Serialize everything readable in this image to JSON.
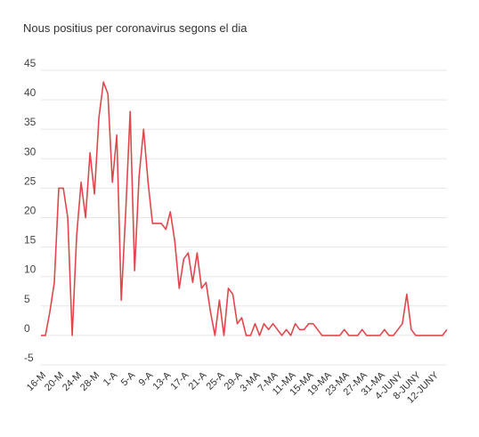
{
  "chart_data": {
    "type": "line",
    "title": "Nous positius per coronavirus segons el dia",
    "color": "#e0474c",
    "ylim": [
      -5,
      45
    ],
    "yticks": [
      -5,
      0,
      5,
      10,
      15,
      20,
      25,
      30,
      35,
      40,
      45
    ],
    "grid": true,
    "xtick_labels": [
      "16-M",
      "20-M",
      "24-M",
      "28-M",
      "1-A",
      "5-A",
      "9-A",
      "13-A",
      "17-A",
      "21-A",
      "25-A",
      "29-A",
      "3-MA",
      "7-MA",
      "11-MA",
      "15-MA",
      "19-MA",
      "23-MA",
      "27-MA",
      "31-MA",
      "4-JUNY",
      "8-JUNY",
      "12-JUNY"
    ],
    "series": [
      {
        "values": [
          0,
          0,
          4,
          9,
          25,
          25,
          20,
          0,
          17,
          26,
          20,
          31,
          24,
          37,
          43,
          41,
          26,
          34,
          6,
          21,
          38,
          11,
          27,
          35,
          26,
          19,
          19,
          19,
          18,
          21,
          16,
          8,
          13,
          14,
          9,
          14,
          8,
          9,
          4,
          0,
          6,
          0,
          8,
          7,
          2,
          3,
          0,
          0,
          2,
          0,
          2,
          1,
          2,
          1,
          0,
          1,
          0,
          2,
          1,
          1,
          2,
          2,
          1,
          0,
          0,
          0,
          0,
          0,
          1,
          0,
          0,
          0,
          1,
          0,
          0,
          0,
          0,
          1,
          0,
          0,
          1,
          2,
          7,
          1,
          0,
          0,
          0,
          0,
          0,
          0,
          0,
          1
        ]
      }
    ]
  }
}
